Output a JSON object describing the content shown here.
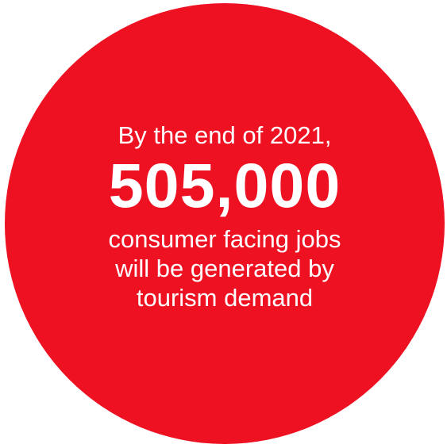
{
  "colors": {
    "circle_fill": "#ee1122",
    "text": "#ffffff"
  },
  "stat": {
    "intro": "By the end of 2021,",
    "value": "505,000",
    "desc_lines": [
      "consumer facing jobs",
      "will be generated by",
      "tourism demand"
    ]
  }
}
